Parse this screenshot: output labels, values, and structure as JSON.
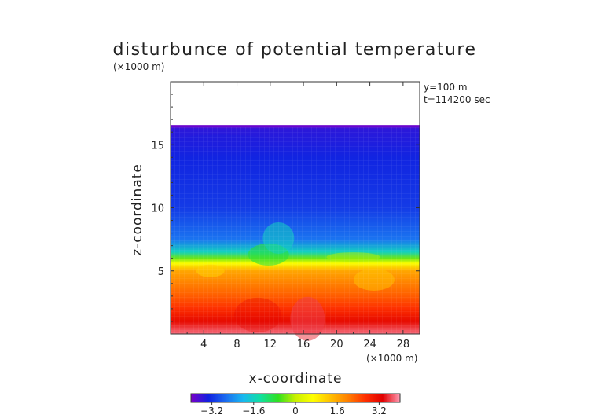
{
  "chart_data": {
    "type": "heatmap",
    "title": "disturbunce of potential temperature",
    "units_x": "(×1000 m)",
    "units_z": "(×1000 m)",
    "annotation": [
      "y=100 m",
      "t=114200 sec"
    ],
    "xlabel": "x-coordinate",
    "ylabel": "z-coordinate",
    "xlim": [
      0,
      30
    ],
    "ylim": [
      0,
      20
    ],
    "x_ticks": [
      4,
      8,
      12,
      16,
      20,
      24,
      28
    ],
    "y_ticks": [
      5,
      10,
      15
    ],
    "data_top_z": 16.5,
    "colorbar": {
      "range": [
        -4.0,
        4.0
      ],
      "ticks": [
        "−3.2",
        "−1.6",
        "0",
        "1.6",
        "3.2"
      ],
      "tick_values": [
        -3.2,
        -1.6,
        0,
        1.6,
        3.2
      ],
      "colors": [
        "#7a00c8",
        "#1020e0",
        "#1a6cf0",
        "#18b8f0",
        "#10e0a0",
        "#30e020",
        "#c8f000",
        "#ffff00",
        "#ffc000",
        "#ff8000",
        "#ff3000",
        "#e00000",
        "#ff9cb4"
      ]
    },
    "profile_z": [
      0,
      1,
      2,
      3,
      4,
      5,
      5.6,
      6.0,
      6.5,
      7.5,
      10,
      14,
      16.2,
      16.5
    ],
    "profile_values": [
      3.8,
      3.2,
      2.7,
      2.3,
      2.0,
      1.6,
      0.6,
      -0.4,
      -1.6,
      -2.6,
      -3.1,
      -3.3,
      -3.5,
      -3.8
    ]
  }
}
